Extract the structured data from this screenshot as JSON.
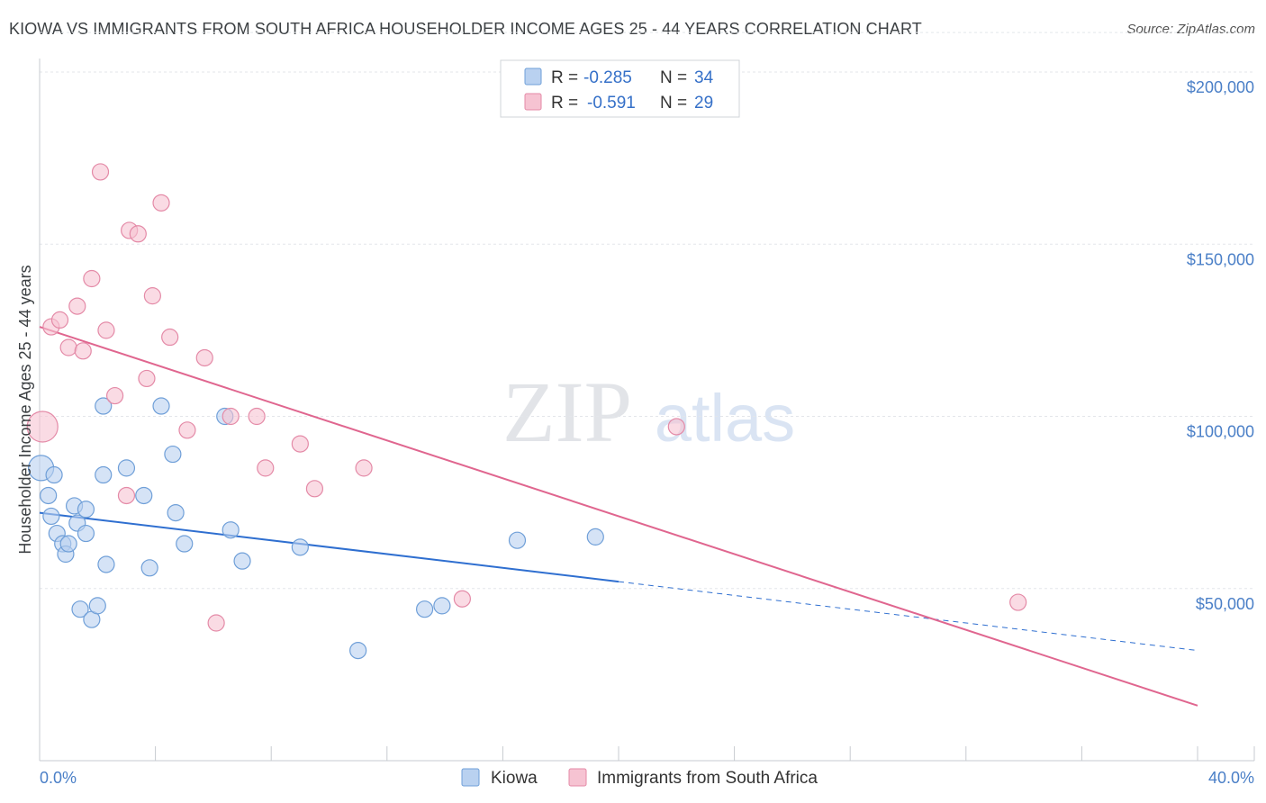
{
  "header": {
    "title": "KIOWA VS IMMIGRANTS FROM SOUTH AFRICA HOUSEHOLDER INCOME AGES 25 - 44 YEARS CORRELATION CHART",
    "source": "Source: ZipAtlas.com"
  },
  "watermark": "ZIPatlas",
  "legend": {
    "r_label": "R =",
    "n_label": "N =",
    "entries": [
      {
        "r": "-0.285",
        "n": "34"
      },
      {
        "r": "-0.591",
        "n": "29"
      }
    ]
  },
  "colors": {
    "kiowa_fill": "#b9d1f0",
    "kiowa_stroke": "#6f9fd8",
    "kiowa_line": "#2f6fd0",
    "sa_fill": "#f6c3d2",
    "sa_stroke": "#e48aa7",
    "sa_line": "#e0668f"
  },
  "chart_data": {
    "type": "scatter",
    "title": "KIOWA VS IMMIGRANTS FROM SOUTH AFRICA HOUSEHOLDER INCOME AGES 25 - 44 YEARS CORRELATION CHART",
    "xlabel": "",
    "ylabel": "Householder Income Ages 25 - 44 years",
    "xlim": [
      0,
      40
    ],
    "ylim": [
      0,
      212000
    ],
    "x_tick_labels": [
      "0.0%",
      "40.0%"
    ],
    "y_ticks": [
      50000,
      100000,
      150000,
      200000
    ],
    "y_tick_labels": [
      "$50,000",
      "$100,000",
      "$150,000",
      "$200,000"
    ],
    "grid": true,
    "legend_placement": "top-center",
    "series": [
      {
        "name": "Kiowa",
        "r": -0.285,
        "n": 34,
        "trend": {
          "x0": 0,
          "y0": 72000,
          "x_solid_end": 20,
          "x1": 40,
          "y1": 32000
        },
        "points": [
          [
            0.05,
            85000,
            14
          ],
          [
            0.5,
            83000,
            9
          ],
          [
            0.3,
            77000,
            9
          ],
          [
            0.4,
            71000,
            9
          ],
          [
            0.6,
            66000,
            9
          ],
          [
            0.8,
            63000,
            9
          ],
          [
            0.9,
            60000,
            9
          ],
          [
            1.0,
            63000,
            9
          ],
          [
            1.2,
            74000,
            9
          ],
          [
            1.3,
            69000,
            9
          ],
          [
            1.6,
            73000,
            9
          ],
          [
            1.6,
            66000,
            9
          ],
          [
            1.4,
            44000,
            9
          ],
          [
            1.8,
            41000,
            9
          ],
          [
            2.0,
            45000,
            9
          ],
          [
            2.2,
            83000,
            9
          ],
          [
            2.2,
            103000,
            9
          ],
          [
            2.3,
            57000,
            9
          ],
          [
            3.0,
            85000,
            9
          ],
          [
            3.6,
            77000,
            9
          ],
          [
            3.8,
            56000,
            9
          ],
          [
            4.2,
            103000,
            9
          ],
          [
            4.6,
            89000,
            9
          ],
          [
            4.7,
            72000,
            9
          ],
          [
            5.0,
            63000,
            9
          ],
          [
            6.4,
            100000,
            9
          ],
          [
            6.6,
            67000,
            9
          ],
          [
            7.0,
            58000,
            9
          ],
          [
            9.0,
            62000,
            9
          ],
          [
            11.0,
            32000,
            9
          ],
          [
            13.3,
            44000,
            9
          ],
          [
            13.9,
            45000,
            9
          ],
          [
            16.5,
            64000,
            9
          ],
          [
            19.2,
            65000,
            9
          ]
        ]
      },
      {
        "name": "Immigrants from South Africa",
        "r": -0.591,
        "n": 29,
        "trend": {
          "x0": 0,
          "y0": 126000,
          "x1": 40,
          "y1": 16000
        },
        "points": [
          [
            0.1,
            97000,
            17
          ],
          [
            0.4,
            126000,
            9
          ],
          [
            0.7,
            128000,
            9
          ],
          [
            1.0,
            120000,
            9
          ],
          [
            1.3,
            132000,
            9
          ],
          [
            1.5,
            119000,
            9
          ],
          [
            1.8,
            140000,
            9
          ],
          [
            2.1,
            171000,
            9
          ],
          [
            2.3,
            125000,
            9
          ],
          [
            2.6,
            106000,
            9
          ],
          [
            3.0,
            77000,
            9
          ],
          [
            3.1,
            154000,
            9
          ],
          [
            3.4,
            153000,
            9
          ],
          [
            3.7,
            111000,
            9
          ],
          [
            3.9,
            135000,
            9
          ],
          [
            4.2,
            162000,
            9
          ],
          [
            4.5,
            123000,
            9
          ],
          [
            5.1,
            96000,
            9
          ],
          [
            5.7,
            117000,
            9
          ],
          [
            6.1,
            40000,
            9
          ],
          [
            6.6,
            100000,
            9
          ],
          [
            7.5,
            100000,
            9
          ],
          [
            7.8,
            85000,
            9
          ],
          [
            9.0,
            92000,
            9
          ],
          [
            9.5,
            79000,
            9
          ],
          [
            11.2,
            85000,
            9
          ],
          [
            14.6,
            47000,
            9
          ],
          [
            22.0,
            97000,
            9
          ],
          [
            33.8,
            46000,
            9
          ]
        ]
      }
    ]
  },
  "bottom_legend": [
    "Kiowa",
    "Immigrants from South Africa"
  ]
}
